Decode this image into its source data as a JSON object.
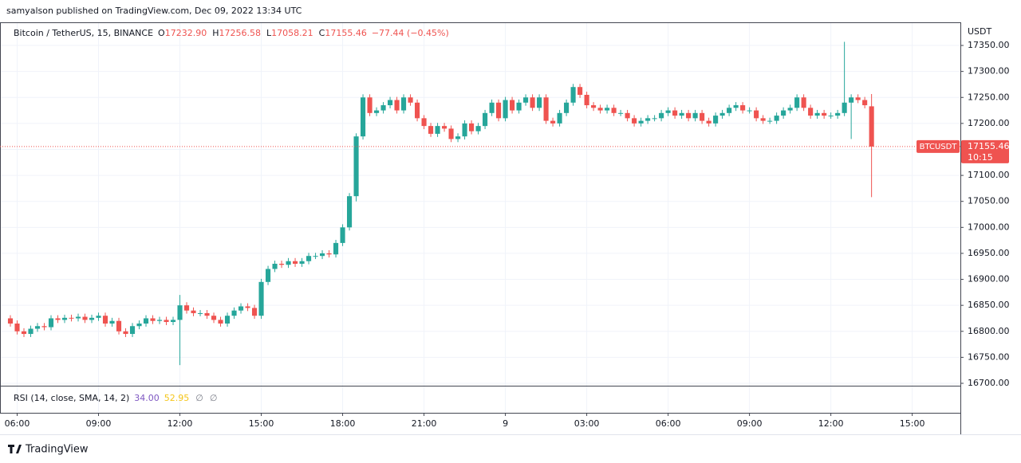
{
  "published": "samyalson published on TradingView.com, Dec 09, 2022 13:34 UTC",
  "legend": {
    "symbol": "Bitcoin / TetherUS, 15, BINANCE",
    "fields": [
      {
        "key": "O",
        "value": "17232.90"
      },
      {
        "key": "H",
        "value": "17256.58"
      },
      {
        "key": "L",
        "value": "17058.21"
      },
      {
        "key": "C",
        "value": "17155.46"
      }
    ],
    "change": "−77.44 (−0.45%)"
  },
  "rsi": {
    "label": "RSI (14, close, SMA, 14, 2)",
    "values": [
      {
        "text": "34.00",
        "color": "#7e57c2"
      },
      {
        "text": "52.95",
        "color": "#f5c518"
      }
    ],
    "extra": [
      "∅",
      "∅"
    ]
  },
  "price_tag": {
    "symbol": "BTCUSDT",
    "price": "17155.46",
    "countdown": "10:15"
  },
  "brand": "TradingView",
  "chart_data": {
    "type": "candlestick",
    "ylabel": "USDT",
    "up_color": "#26a69a",
    "down_color": "#ef5350",
    "grid": true,
    "xlim": [
      -1.53,
      140.1
    ],
    "ylim": [
      16695.4,
      17394.5
    ],
    "xticks": [
      {
        "value": 1,
        "label": "06:00"
      },
      {
        "value": 13,
        "label": "09:00"
      },
      {
        "value": 25,
        "label": "12:00"
      },
      {
        "value": 37,
        "label": "15:00"
      },
      {
        "value": 49,
        "label": "18:00"
      },
      {
        "value": 61,
        "label": "21:00"
      },
      {
        "value": 73,
        "label": "9"
      },
      {
        "value": 85,
        "label": "03:00"
      },
      {
        "value": 97,
        "label": "06:00"
      },
      {
        "value": 109,
        "label": "09:00"
      },
      {
        "value": 121,
        "label": "12:00"
      },
      {
        "value": 133,
        "label": "15:00"
      }
    ],
    "yticks": [
      {
        "value": 16700,
        "label": "16700.00"
      },
      {
        "value": 16750,
        "label": "16750.00"
      },
      {
        "value": 16800,
        "label": "16800.00"
      },
      {
        "value": 16850,
        "label": "16850.00"
      },
      {
        "value": 16900,
        "label": "16900.00"
      },
      {
        "value": 16950,
        "label": "16950.00"
      },
      {
        "value": 17000,
        "label": "17000.00"
      },
      {
        "value": 17050,
        "label": "17050.00"
      },
      {
        "value": 17100,
        "label": "17100.00"
      },
      {
        "value": 17150,
        "label": "17150.00"
      },
      {
        "value": 17200,
        "label": "17200.00"
      },
      {
        "value": 17250,
        "label": "17250.00"
      },
      {
        "value": 17300,
        "label": "17300.00"
      },
      {
        "value": 17350,
        "label": "17350.00"
      }
    ],
    "open": [
      16825,
      16815,
      16800,
      16795,
      16805,
      16810,
      16808,
      16825,
      16822,
      16826,
      16825,
      16828,
      16822,
      16826,
      16830,
      16815,
      16820,
      16800,
      16795,
      16810,
      16815,
      16825,
      16820,
      16822,
      16818,
      16822,
      16850,
      16840,
      16835,
      16835,
      16830,
      16822,
      16815,
      16830,
      16840,
      16848,
      16845,
      16830,
      16895,
      16920,
      16930,
      16928,
      16935,
      16930,
      16935,
      16945,
      16945,
      16950,
      16948,
      16970,
      17000,
      17060,
      17175,
      17250,
      17220,
      17225,
      17235,
      17245,
      17225,
      17250,
      17240,
      17210,
      17195,
      17180,
      17195,
      17190,
      17170,
      17175,
      17200,
      17185,
      17195,
      17220,
      17240,
      17210,
      17245,
      17225,
      17240,
      17250,
      17230,
      17250,
      17205,
      17200,
      17220,
      17240,
      17270,
      17255,
      17235,
      17230,
      17225,
      17230,
      17220,
      17220,
      17210,
      17200,
      17205,
      17210,
      17210,
      17220,
      17225,
      17215,
      17220,
      17210,
      17220,
      17205,
      17200,
      17215,
      17220,
      17230,
      17235,
      17225,
      17225,
      17210,
      17205,
      17205,
      17215,
      17225,
      17230,
      17250,
      17230,
      17215,
      17220,
      17215,
      17215,
      17220,
      17240,
      17250,
      17245,
      17232.9
    ],
    "high": [
      16831,
      16821,
      16806,
      16811,
      16816,
      16816,
      16831,
      16831,
      16832,
      16832,
      16834,
      16834,
      16832,
      16836,
      16836,
      16826,
      16826,
      16806,
      16816,
      16821,
      16831,
      16831,
      16828,
      16828,
      16828,
      16870,
      16856,
      16846,
      16841,
      16841,
      16836,
      16828,
      16836,
      16846,
      16854,
      16854,
      16851,
      16901,
      16926,
      16936,
      16936,
      16941,
      16941,
      16941,
      16951,
      16951,
      16956,
      16956,
      16976,
      17006,
      17066,
      17181,
      17256,
      17256,
      17231,
      17241,
      17251,
      17251,
      17256,
      17256,
      17246,
      17216,
      17201,
      17201,
      17201,
      17196,
      17181,
      17206,
      17206,
      17201,
      17226,
      17246,
      17246,
      17251,
      17251,
      17246,
      17256,
      17256,
      17256,
      17256,
      17211,
      17226,
      17246,
      17276,
      17276,
      17261,
      17241,
      17236,
      17236,
      17236,
      17226,
      17226,
      17216,
      17211,
      17216,
      17216,
      17226,
      17231,
      17231,
      17226,
      17226,
      17226,
      17226,
      17211,
      17221,
      17226,
      17236,
      17241,
      17241,
      17231,
      17231,
      17216,
      17211,
      17221,
      17231,
      17236,
      17256,
      17256,
      17236,
      17226,
      17226,
      17221,
      17226,
      17357,
      17256,
      17256,
      17251,
      17256.58
    ],
    "low": [
      16809,
      16794,
      16789,
      16789,
      16799,
      16802,
      16802,
      16816,
      16816,
      16819,
      16819,
      16816,
      16816,
      16820,
      16809,
      16809,
      16794,
      16789,
      16789,
      16804,
      16809,
      16814,
      16814,
      16812,
      16812,
      16735,
      16834,
      16829,
      16829,
      16824,
      16816,
      16809,
      16809,
      16824,
      16834,
      16839,
      16824,
      16824,
      16889,
      16914,
      16922,
      16922,
      16924,
      16924,
      16929,
      16939,
      16939,
      16942,
      16942,
      16964,
      16994,
      17050,
      17169,
      17214,
      17214,
      17219,
      17229,
      17219,
      17219,
      17234,
      17204,
      17189,
      17174,
      17174,
      17184,
      17164,
      17164,
      17169,
      17179,
      17179,
      17189,
      17214,
      17204,
      17204,
      17219,
      17219,
      17234,
      17224,
      17224,
      17199,
      17194,
      17194,
      17214,
      17234,
      17249,
      17229,
      17224,
      17219,
      17219,
      17214,
      17214,
      17204,
      17194,
      17194,
      17199,
      17204,
      17204,
      17214,
      17209,
      17209,
      17204,
      17204,
      17199,
      17194,
      17194,
      17209,
      17214,
      17224,
      17219,
      17219,
      17204,
      17199,
      17199,
      17199,
      17209,
      17219,
      17224,
      17224,
      17209,
      17209,
      17209,
      17209,
      17209,
      17214,
      17170,
      17239,
      17229,
      17058.21
    ],
    "close": [
      16815,
      16800,
      16795,
      16805,
      16810,
      16808,
      16825,
      16822,
      16826,
      16825,
      16828,
      16822,
      16826,
      16830,
      16815,
      16820,
      16800,
      16795,
      16810,
      16815,
      16825,
      16820,
      16822,
      16818,
      16822,
      16850,
      16840,
      16835,
      16835,
      16830,
      16822,
      16815,
      16830,
      16840,
      16848,
      16845,
      16830,
      16895,
      16920,
      16930,
      16928,
      16935,
      16930,
      16935,
      16945,
      16945,
      16950,
      16948,
      16970,
      17000,
      17060,
      17175,
      17250,
      17220,
      17225,
      17235,
      17245,
      17225,
      17250,
      17240,
      17210,
      17195,
      17180,
      17195,
      17190,
      17170,
      17175,
      17200,
      17185,
      17195,
      17220,
      17240,
      17210,
      17245,
      17225,
      17240,
      17250,
      17230,
      17250,
      17205,
      17200,
      17220,
      17240,
      17270,
      17255,
      17235,
      17230,
      17225,
      17230,
      17220,
      17220,
      17210,
      17200,
      17205,
      17210,
      17210,
      17220,
      17225,
      17215,
      17220,
      17210,
      17220,
      17205,
      17200,
      17215,
      17220,
      17230,
      17235,
      17225,
      17225,
      17210,
      17205,
      17205,
      17215,
      17225,
      17230,
      17250,
      17230,
      17215,
      17220,
      17215,
      17215,
      17220,
      17240,
      17250,
      17245,
      17235,
      17155.46
    ]
  }
}
